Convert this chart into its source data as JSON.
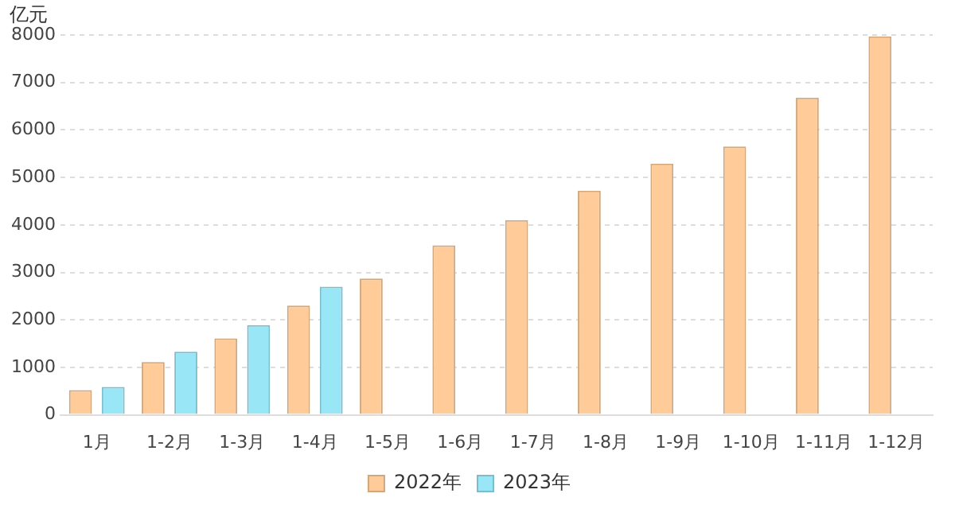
{
  "chart_data": {
    "type": "bar",
    "ylabel": "亿元",
    "categories": [
      "1月",
      "1-2月",
      "1-3月",
      "1-4月",
      "1-5月",
      "1-6月",
      "1-7月",
      "1-8月",
      "1-9月",
      "1-10月",
      "1-11月",
      "1-12月"
    ],
    "series": [
      {
        "name": "2022年",
        "color": "#ffcc99",
        "values": [
          520,
          1110,
          1610,
          2300,
          2870,
          3570,
          4100,
          4720,
          5290,
          5650,
          6680,
          7970
        ]
      },
      {
        "name": "2023年",
        "color": "#99e6f7",
        "values": [
          590,
          1330,
          1890,
          2700,
          null,
          null,
          null,
          null,
          null,
          null,
          null,
          null
        ]
      }
    ],
    "ylim": [
      0,
      8000
    ],
    "yticks": [
      0,
      1000,
      2000,
      3000,
      4000,
      5000,
      6000,
      7000,
      8000
    ],
    "grid": "y",
    "legend": "bottom"
  }
}
